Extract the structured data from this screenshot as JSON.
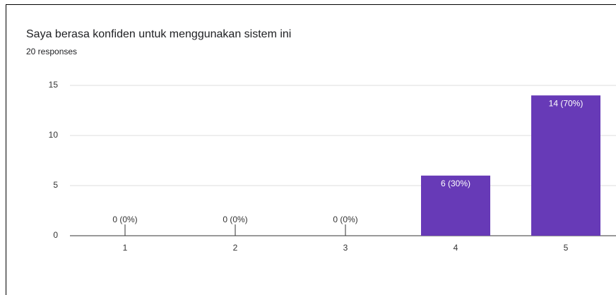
{
  "chart_data": {
    "type": "bar",
    "title": "Saya berasa konfiden untuk menggunakan sistem ini",
    "subtitle": "20 responses",
    "categories": [
      "1",
      "2",
      "3",
      "4",
      "5"
    ],
    "values": [
      0,
      0,
      0,
      6,
      14
    ],
    "value_labels": [
      "0 (0%)",
      "0 (0%)",
      "0 (0%)",
      "6 (30%)",
      "14 (70%)"
    ],
    "color": "#673ab7",
    "ylim": [
      0,
      15
    ],
    "yticks": [
      0,
      5,
      10,
      15
    ],
    "grid": true
  }
}
